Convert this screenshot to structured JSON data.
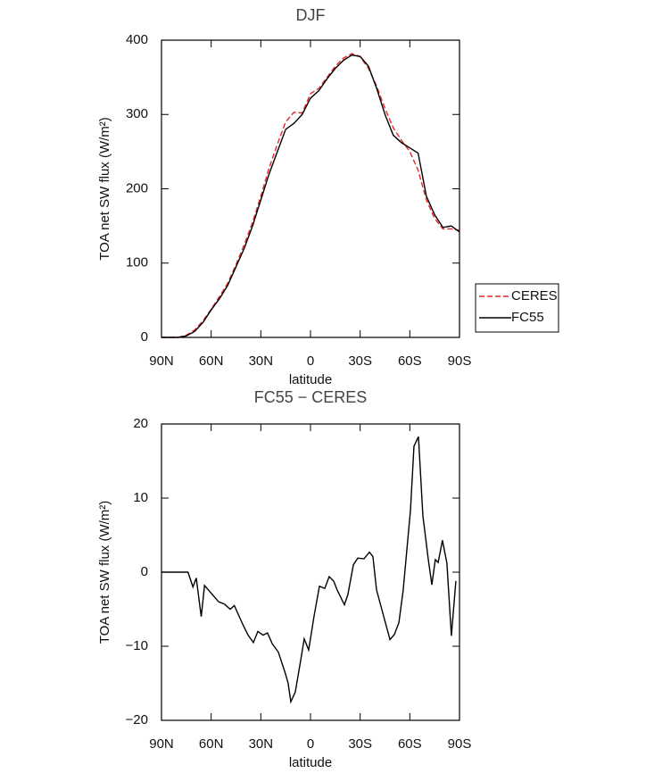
{
  "chart_data": [
    {
      "type": "line",
      "title": "DJF",
      "x_label": "latitude",
      "y_label": "TOA net SW flux (W/m²)",
      "xlim": [
        90,
        -90
      ],
      "xticks": [
        {
          "value": 90,
          "label": "90N"
        },
        {
          "value": 60,
          "label": "60N"
        },
        {
          "value": 30,
          "label": "30N"
        },
        0,
        {
          "value": -30,
          "label": "30S"
        },
        {
          "value": -60,
          "label": "60S"
        },
        {
          "value": -90,
          "label": "90S"
        }
      ],
      "ylim": [
        0,
        400
      ],
      "yticks": [
        0,
        100,
        200,
        300,
        400
      ],
      "legend": "right",
      "x": [
        90,
        85,
        80,
        75,
        70,
        65,
        60,
        55,
        50,
        45,
        40,
        35,
        30,
        25,
        20,
        15,
        10,
        5,
        0,
        -5,
        -10,
        -15,
        -20,
        -25,
        -30,
        -35,
        -40,
        -45,
        -50,
        -55,
        -60,
        -65,
        -70,
        -75,
        -80,
        -85,
        -90
      ],
      "series": [
        {
          "name": "CERES",
          "color": "#e8262b",
          "linestyle": "dashed",
          "values": [
            0,
            0,
            0,
            3,
            10,
            22,
            38,
            55,
            73,
            98,
            125,
            155,
            190,
            228,
            260,
            290,
            303,
            302,
            328,
            335,
            350,
            365,
            376,
            382,
            378,
            362,
            338,
            308,
            282,
            265,
            250,
            225,
            185,
            160,
            146,
            146,
            144
          ]
        },
        {
          "name": "FC55",
          "color": "#000000",
          "linestyle": "solid",
          "values": [
            0,
            0,
            0,
            2,
            8,
            20,
            37,
            52,
            70,
            95,
            120,
            150,
            185,
            220,
            250,
            280,
            288,
            300,
            322,
            332,
            348,
            362,
            373,
            380,
            378,
            365,
            335,
            300,
            272,
            262,
            255,
            248,
            190,
            165,
            148,
            150,
            142
          ]
        }
      ]
    },
    {
      "type": "line",
      "title": "FC55 − CERES",
      "x_label": "latitude",
      "y_label": "TOA net SW flux (W/m²)",
      "xlim": [
        90,
        -90
      ],
      "xticks": [
        {
          "value": 90,
          "label": "90N"
        },
        {
          "value": 60,
          "label": "60N"
        },
        {
          "value": 30,
          "label": "30N"
        },
        0,
        {
          "value": -30,
          "label": "30S"
        },
        {
          "value": -60,
          "label": "60S"
        },
        {
          "value": -90,
          "label": "90S"
        }
      ],
      "ylim": [
        -20,
        20
      ],
      "yticks": [
        {
          "value": -20,
          "label": "−20"
        },
        {
          "value": -10,
          "label": "−10"
        },
        0,
        10,
        20
      ],
      "x": [
        90,
        74,
        71,
        69,
        66,
        64,
        55.5,
        52,
        48.5,
        46,
        41,
        37.7,
        34.5,
        31.8,
        28.6,
        26,
        23,
        19.4,
        15,
        13.5,
        11.9,
        9.2,
        6,
        3.8,
        1.1,
        -2.1,
        -5.4,
        -8.6,
        -11.3,
        -14,
        -16.1,
        -20.5,
        -22.6,
        -25.9,
        -28.6,
        -32.3,
        -35.6,
        -37.7,
        -39.9,
        -48,
        -50.7,
        -53.4,
        -56,
        -60.4,
        -62.5,
        -65.2,
        -67.9,
        -71.1,
        -73.3,
        -75.4,
        -77.1,
        -79.7,
        -82.4,
        -85.1,
        -87.8
      ],
      "series": [
        {
          "color": "#000000",
          "linestyle": "solid",
          "values": [
            0,
            0,
            -2,
            -0.8,
            -6,
            -1.8,
            -4,
            -4.3,
            -5,
            -4.5,
            -7,
            -8.5,
            -9.5,
            -8,
            -8.5,
            -8.2,
            -9.7,
            -10.8,
            -13.8,
            -15,
            -17.5,
            -16.2,
            -12,
            -9,
            -10.5,
            -6,
            -1.9,
            -2.2,
            -0.6,
            -1.2,
            -2.4,
            -4.4,
            -3,
            1,
            1.9,
            1.8,
            2.7,
            2.1,
            -2.4,
            -9.1,
            -8.4,
            -6.8,
            -2.4,
            8.4,
            17,
            18.3,
            7.6,
            1.8,
            -1.7,
            1.7,
            1.3,
            4.3,
            1.2,
            -8.6,
            -1.2
          ]
        }
      ]
    }
  ]
}
